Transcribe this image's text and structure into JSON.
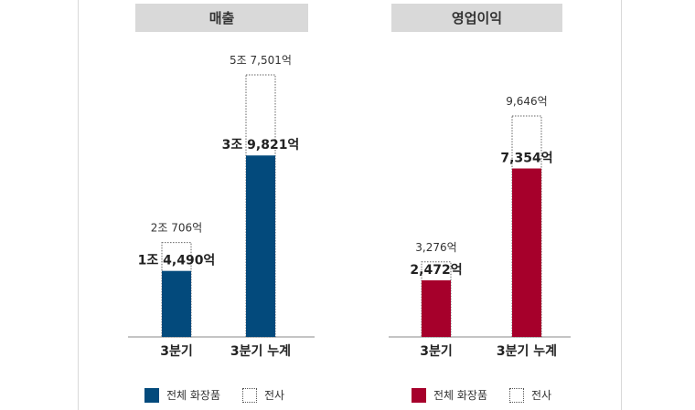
{
  "chart_data": [
    {
      "type": "bar",
      "title": "매출",
      "categories": [
        "3분기",
        "3분기 누계"
      ],
      "series": [
        {
          "name": "전체 화장품",
          "values": [
            14490,
            39821
          ],
          "labels": [
            "1조 4,490억",
            "3조 9,821억"
          ],
          "style": "solid"
        },
        {
          "name": "전사",
          "values": [
            20706,
            57501
          ],
          "labels": [
            "2조 706억",
            "5조 7,501억"
          ],
          "style": "dotted"
        }
      ],
      "color": "#034a7c",
      "ylim": [
        0,
        60000
      ]
    },
    {
      "type": "bar",
      "title": "영업이익",
      "categories": [
        "3분기",
        "3분기 누계"
      ],
      "series": [
        {
          "name": "전체 화장품",
          "values": [
            2472,
            7354
          ],
          "labels": [
            "2,472억",
            "7,354억"
          ],
          "style": "solid"
        },
        {
          "name": "전사",
          "values": [
            3276,
            9646
          ],
          "labels": [
            "3,276억",
            "9,646억"
          ],
          "style": "dotted"
        }
      ],
      "color": "#a6002b",
      "ylim": [
        0,
        11500
      ]
    }
  ]
}
